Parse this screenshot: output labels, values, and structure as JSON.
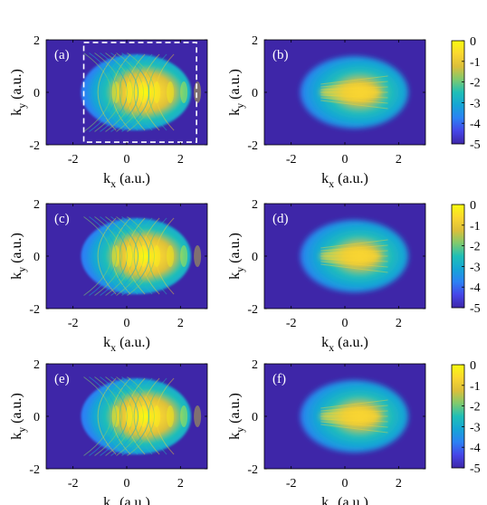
{
  "figure": {
    "panels": [
      {
        "label": "(a)",
        "variant": "raw",
        "boxed": true,
        "show_ylabel": true
      },
      {
        "label": "(b)",
        "variant": "smooth",
        "boxed": false,
        "show_ylabel": true
      },
      {
        "label": "(c)",
        "variant": "raw",
        "boxed": false,
        "show_ylabel": true
      },
      {
        "label": "(d)",
        "variant": "smooth",
        "boxed": false,
        "show_ylabel": true
      },
      {
        "label": "(e)",
        "variant": "raw",
        "boxed": false,
        "show_ylabel": true
      },
      {
        "label": "(f)",
        "variant": "smooth",
        "boxed": false,
        "show_ylabel": true
      }
    ],
    "colorbars": [
      {
        "ticks": [
          "0",
          "-1",
          "-2",
          "-3",
          "-4",
          "-5"
        ]
      },
      {
        "ticks": [
          "0",
          "-1",
          "-2",
          "-3",
          "-4",
          "-5"
        ]
      },
      {
        "ticks": [
          "0",
          "-1",
          "-2",
          "-3",
          "-4",
          "-5"
        ]
      }
    ],
    "colormap": [
      "#3e26a8",
      "#4646e8",
      "#2c81f4",
      "#16a5d6",
      "#1fbfb7",
      "#7fca6e",
      "#dcbf3a",
      "#fbd730",
      "#f9fb0e"
    ],
    "background_color": "#3e26a8"
  },
  "chart_data": [
    {
      "type": "heatmap",
      "label": "(a)",
      "xlabel": "k_x (a.u.)",
      "ylabel": "k_y (a.u.)",
      "xlim": [
        -3,
        3
      ],
      "ylim": [
        -2,
        2
      ],
      "xticks": [
        "-2",
        "0",
        "2"
      ],
      "yticks": [
        "2",
        "0",
        "-2"
      ],
      "clim": [
        -5,
        0
      ],
      "dashed_box": {
        "x": [
          -1.6,
          2.6
        ],
        "y": [
          -1.9,
          1.9
        ]
      }
    },
    {
      "type": "heatmap",
      "label": "(b)",
      "xlabel": "k_x (a.u.)",
      "ylabel": "k_y (a.u.)",
      "xlim": [
        -3,
        3
      ],
      "ylim": [
        -2,
        2
      ],
      "xticks": [
        "-2",
        "0",
        "2"
      ],
      "yticks": [
        "2",
        "0",
        "-2"
      ],
      "clim": [
        -5,
        0
      ]
    },
    {
      "type": "heatmap",
      "label": "(c)",
      "xlabel": "k_x (a.u.)",
      "ylabel": "k_y (a.u.)",
      "xlim": [
        -3,
        3
      ],
      "ylim": [
        -2,
        2
      ],
      "xticks": [
        "-2",
        "0",
        "2"
      ],
      "yticks": [
        "2",
        "0",
        "-2"
      ],
      "clim": [
        -5,
        0
      ]
    },
    {
      "type": "heatmap",
      "label": "(d)",
      "xlabel": "k_x (a.u.)",
      "ylabel": "k_y (a.u.)",
      "xlim": [
        -3,
        3
      ],
      "ylim": [
        -2,
        2
      ],
      "xticks": [
        "-2",
        "0",
        "2"
      ],
      "yticks": [
        "2",
        "0",
        "-2"
      ],
      "clim": [
        -5,
        0
      ]
    },
    {
      "type": "heatmap",
      "label": "(e)",
      "xlabel": "k_x (a.u.)",
      "ylabel": "k_y (a.u.)",
      "xlim": [
        -3,
        3
      ],
      "ylim": [
        -2,
        2
      ],
      "xticks": [
        "-2",
        "0",
        "2"
      ],
      "yticks": [
        "2",
        "0",
        "-2"
      ],
      "clim": [
        -5,
        0
      ]
    },
    {
      "type": "heatmap",
      "label": "(f)",
      "xlabel": "k_x (a.u.)",
      "ylabel": "k_y (a.u.)",
      "xlim": [
        -3,
        3
      ],
      "ylim": [
        -2,
        2
      ],
      "xticks": [
        "-2",
        "0",
        "2"
      ],
      "yticks": [
        "2",
        "0",
        "-2"
      ],
      "clim": [
        -5,
        0
      ]
    }
  ]
}
